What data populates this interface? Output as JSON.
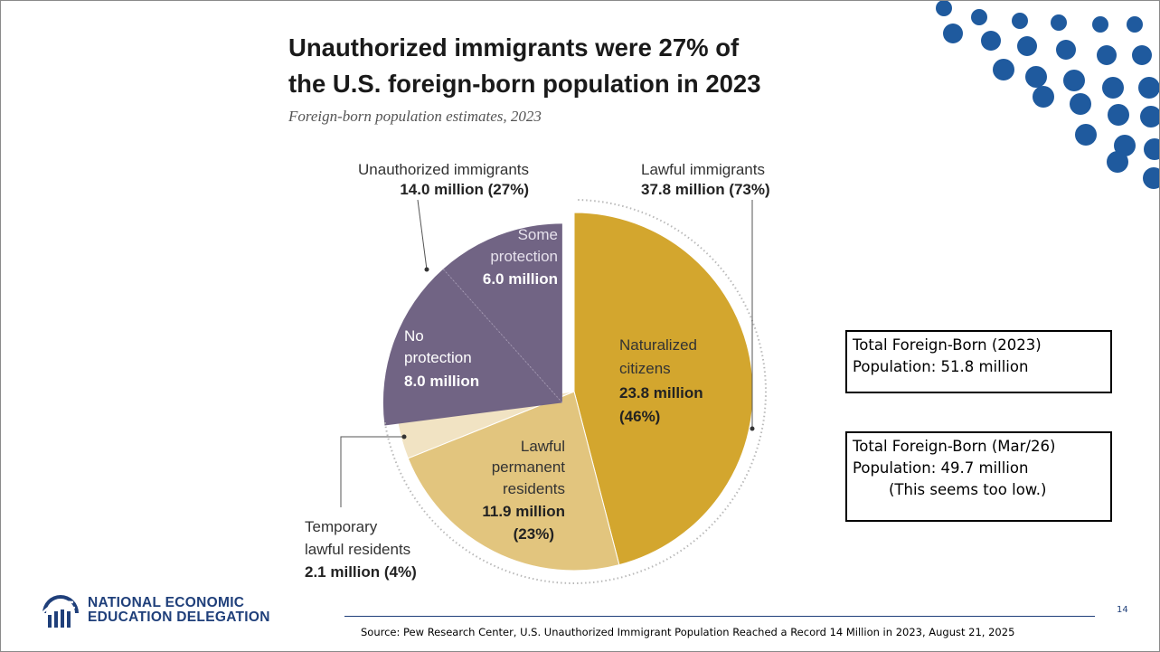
{
  "slide": {
    "page_number": "14",
    "logo_line1": "NATIONAL ECONOMIC",
    "logo_line2": "EDUCATION DELEGATION",
    "source": "Source: Pew Research Center, U.S. Unauthorized Immigrant Population Reached a Record 14 Million in 2023, August 21, 2025",
    "box1": {
      "line1": "Total Foreign-Born (2023)",
      "line2": "Population: 51.8 million"
    },
    "box2": {
      "line1": "Total Foreign-Born (Mar/26)",
      "line2": "Population: 49.7 million",
      "line3": "(This seems too low.)"
    },
    "colors": {
      "brand": "#1f3f7a",
      "dots": "#1f5a9e"
    }
  },
  "chart_data": {
    "type": "pie",
    "title_line1": "Unauthorized immigrants were 27% of",
    "title_line2": "the U.S. foreign-born population in 2023",
    "subtitle": "Foreign-born population estimates, 2023",
    "groups": [
      {
        "name": "Unauthorized immigrants",
        "value_text": "14.0 million (27%)",
        "value": 14.0,
        "percent": 27
      },
      {
        "name": "Lawful immigrants",
        "value_text": "37.8 million (73%)",
        "value": 37.8,
        "percent": 73
      }
    ],
    "slices": [
      {
        "group": "Lawful immigrants",
        "label": [
          "Naturalized",
          "citizens"
        ],
        "value_text": [
          "23.8 million",
          "(46%)"
        ],
        "value": 23.8,
        "percent": 46,
        "color": "#d3a62e"
      },
      {
        "group": "Lawful immigrants",
        "label": [
          "Lawful",
          "permanent",
          "residents"
        ],
        "value_text": [
          "11.9 million",
          "(23%)"
        ],
        "value": 11.9,
        "percent": 23,
        "color": "#e2c57e"
      },
      {
        "group": "Lawful immigrants",
        "label": [
          "Temporary",
          "lawful residents"
        ],
        "value_text": [
          "2.1 million (4%)"
        ],
        "value": 2.1,
        "percent": 4,
        "color": "#f1e3c3"
      },
      {
        "group": "Unauthorized immigrants",
        "label": [
          "No",
          "protection"
        ],
        "value_text": [
          "8.0 million"
        ],
        "value": 8.0,
        "percent": 15.4,
        "color": "#716484"
      },
      {
        "group": "Unauthorized immigrants",
        "label": [
          "Some",
          "protection"
        ],
        "value_text": [
          "6.0 million"
        ],
        "value": 6.0,
        "percent": 11.6,
        "color": "#716484"
      }
    ]
  }
}
